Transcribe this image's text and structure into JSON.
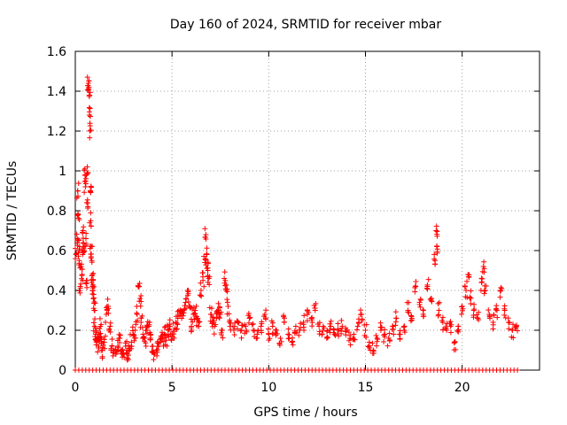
{
  "chart_data": {
    "type": "scatter",
    "title": "Day 160 of 2024, SRMTID for receiver mbar",
    "xlabel": "GPS time / hours",
    "ylabel": "SRMTID / TECUs",
    "xlim": [
      0,
      24
    ],
    "ylim": [
      0,
      1.6
    ],
    "xticks": [
      0,
      5,
      10,
      15,
      20
    ],
    "yticks": [
      0,
      0.2,
      0.4,
      0.6,
      0.8,
      1,
      1.2,
      1.4,
      1.6
    ],
    "xtick_labels": [
      "0",
      "5",
      "10",
      "15",
      "20"
    ],
    "ytick_labels": [
      "0",
      "0.2",
      "0.4",
      "0.6",
      "0.8",
      "1",
      "1.2",
      "1.4",
      "1.6"
    ],
    "grid": true,
    "marker": "+",
    "color": "#ff0000",
    "series": [
      {
        "name": "SRMTID",
        "points": [
          [
            0.05,
            0.58
          ],
          [
            0.1,
            0.66
          ],
          [
            0.12,
            0.9
          ],
          [
            0.15,
            0.78
          ],
          [
            0.2,
            0.55
          ],
          [
            0.22,
            0.62
          ],
          [
            0.25,
            0.42
          ],
          [
            0.3,
            0.52
          ],
          [
            0.35,
            0.48
          ],
          [
            0.38,
            0.58
          ],
          [
            0.4,
            0.7
          ],
          [
            0.45,
            0.6
          ],
          [
            0.5,
            0.98
          ],
          [
            0.52,
            0.92
          ],
          [
            0.55,
            0.66
          ],
          [
            0.6,
            0.45
          ],
          [
            0.62,
            1.02
          ],
          [
            0.65,
            0.82
          ],
          [
            0.68,
            1.44
          ],
          [
            0.7,
            1.42
          ],
          [
            0.72,
            1.38
          ],
          [
            0.73,
            1.28
          ],
          [
            0.75,
            1.2
          ],
          [
            0.78,
            0.9
          ],
          [
            0.8,
            0.75
          ],
          [
            0.82,
            0.62
          ],
          [
            0.85,
            0.55
          ],
          [
            0.88,
            0.48
          ],
          [
            0.9,
            0.42
          ],
          [
            0.92,
            0.45
          ],
          [
            0.95,
            0.38
          ],
          [
            0.98,
            0.3
          ],
          [
            1.0,
            0.22
          ],
          [
            1.05,
            0.18
          ],
          [
            1.1,
            0.14
          ],
          [
            1.15,
            0.16
          ],
          [
            1.2,
            0.12
          ],
          [
            1.25,
            0.18
          ],
          [
            1.3,
            0.22
          ],
          [
            1.35,
            0.16
          ],
          [
            1.4,
            0.1
          ],
          [
            1.5,
            0.14
          ],
          [
            1.6,
            0.28
          ],
          [
            1.7,
            0.32
          ],
          [
            1.8,
            0.22
          ],
          [
            1.9,
            0.12
          ],
          [
            2.0,
            0.1
          ],
          [
            2.1,
            0.08
          ],
          [
            2.2,
            0.12
          ],
          [
            2.3,
            0.16
          ],
          [
            2.4,
            0.1
          ],
          [
            2.5,
            0.08
          ],
          [
            2.6,
            0.12
          ],
          [
            2.7,
            0.06
          ],
          [
            2.8,
            0.1
          ],
          [
            2.9,
            0.14
          ],
          [
            3.0,
            0.18
          ],
          [
            3.1,
            0.2
          ],
          [
            3.2,
            0.28
          ],
          [
            3.3,
            0.42
          ],
          [
            3.35,
            0.36
          ],
          [
            3.4,
            0.24
          ],
          [
            3.5,
            0.18
          ],
          [
            3.6,
            0.16
          ],
          [
            3.7,
            0.2
          ],
          [
            3.8,
            0.22
          ],
          [
            3.9,
            0.18
          ],
          [
            4.0,
            0.12
          ],
          [
            4.1,
            0.08
          ],
          [
            4.2,
            0.1
          ],
          [
            4.3,
            0.12
          ],
          [
            4.4,
            0.14
          ],
          [
            4.5,
            0.16
          ],
          [
            4.6,
            0.18
          ],
          [
            4.7,
            0.15
          ],
          [
            4.8,
            0.2
          ],
          [
            4.9,
            0.22
          ],
          [
            5.0,
            0.18
          ],
          [
            5.1,
            0.2
          ],
          [
            5.2,
            0.24
          ],
          [
            5.3,
            0.26
          ],
          [
            5.4,
            0.28
          ],
          [
            5.5,
            0.26
          ],
          [
            5.6,
            0.3
          ],
          [
            5.7,
            0.34
          ],
          [
            5.8,
            0.4
          ],
          [
            5.9,
            0.32
          ],
          [
            6.0,
            0.22
          ],
          [
            6.1,
            0.28
          ],
          [
            6.2,
            0.3
          ],
          [
            6.3,
            0.26
          ],
          [
            6.4,
            0.24
          ],
          [
            6.5,
            0.4
          ],
          [
            6.6,
            0.45
          ],
          [
            6.7,
            0.54
          ],
          [
            6.75,
            0.68
          ],
          [
            6.8,
            0.58
          ],
          [
            6.85,
            0.5
          ],
          [
            6.9,
            0.46
          ],
          [
            7.0,
            0.28
          ],
          [
            7.1,
            0.24
          ],
          [
            7.2,
            0.22
          ],
          [
            7.3,
            0.26
          ],
          [
            7.4,
            0.3
          ],
          [
            7.5,
            0.28
          ],
          [
            7.6,
            0.2
          ],
          [
            7.7,
            0.46
          ],
          [
            7.8,
            0.4
          ],
          [
            7.9,
            0.32
          ],
          [
            8.0,
            0.22
          ],
          [
            8.2,
            0.2
          ],
          [
            8.4,
            0.24
          ],
          [
            8.6,
            0.2
          ],
          [
            8.8,
            0.22
          ],
          [
            9.0,
            0.26
          ],
          [
            9.2,
            0.2
          ],
          [
            9.4,
            0.18
          ],
          [
            9.6,
            0.22
          ],
          [
            9.8,
            0.28
          ],
          [
            10.0,
            0.18
          ],
          [
            10.2,
            0.22
          ],
          [
            10.4,
            0.2
          ],
          [
            10.6,
            0.16
          ],
          [
            10.8,
            0.24
          ],
          [
            11.0,
            0.18
          ],
          [
            11.2,
            0.14
          ],
          [
            11.4,
            0.22
          ],
          [
            11.6,
            0.2
          ],
          [
            11.8,
            0.24
          ],
          [
            12.0,
            0.28
          ],
          [
            12.2,
            0.26
          ],
          [
            12.4,
            0.3
          ],
          [
            12.6,
            0.22
          ],
          [
            12.8,
            0.2
          ],
          [
            13.0,
            0.16
          ],
          [
            13.2,
            0.22
          ],
          [
            13.4,
            0.18
          ],
          [
            13.6,
            0.2
          ],
          [
            13.8,
            0.22
          ],
          [
            14.0,
            0.2
          ],
          [
            14.2,
            0.16
          ],
          [
            14.4,
            0.18
          ],
          [
            14.6,
            0.22
          ],
          [
            14.8,
            0.28
          ],
          [
            15.0,
            0.2
          ],
          [
            15.2,
            0.14
          ],
          [
            15.4,
            0.1
          ],
          [
            15.6,
            0.16
          ],
          [
            15.8,
            0.2
          ],
          [
            16.0,
            0.18
          ],
          [
            16.2,
            0.16
          ],
          [
            16.4,
            0.22
          ],
          [
            16.6,
            0.26
          ],
          [
            16.8,
            0.18
          ],
          [
            17.0,
            0.22
          ],
          [
            17.2,
            0.3
          ],
          [
            17.4,
            0.26
          ],
          [
            17.6,
            0.42
          ],
          [
            17.8,
            0.34
          ],
          [
            18.0,
            0.3
          ],
          [
            18.2,
            0.42
          ],
          [
            18.4,
            0.36
          ],
          [
            18.6,
            0.55
          ],
          [
            18.65,
            0.7
          ],
          [
            18.7,
            0.62
          ],
          [
            18.8,
            0.3
          ],
          [
            19.0,
            0.24
          ],
          [
            19.2,
            0.2
          ],
          [
            19.4,
            0.22
          ],
          [
            19.6,
            0.14
          ],
          [
            19.8,
            0.22
          ],
          [
            20.0,
            0.32
          ],
          [
            20.2,
            0.4
          ],
          [
            20.3,
            0.48
          ],
          [
            20.4,
            0.36
          ],
          [
            20.6,
            0.3
          ],
          [
            20.8,
            0.26
          ],
          [
            21.0,
            0.44
          ],
          [
            21.1,
            0.52
          ],
          [
            21.2,
            0.4
          ],
          [
            21.4,
            0.28
          ],
          [
            21.6,
            0.24
          ],
          [
            21.8,
            0.3
          ],
          [
            22.0,
            0.4
          ],
          [
            22.2,
            0.3
          ],
          [
            22.4,
            0.24
          ],
          [
            22.6,
            0.2
          ],
          [
            22.8,
            0.22
          ]
        ]
      }
    ],
    "zero_band": {
      "x_start": 0,
      "x_end": 22.9,
      "y": 0
    }
  }
}
